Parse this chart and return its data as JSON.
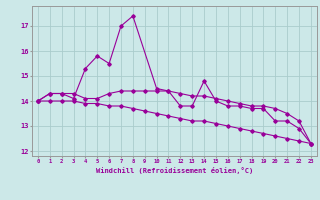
{
  "xlabel": "Windchill (Refroidissement éolien,°C)",
  "background_color": "#cce8e8",
  "grid_color": "#aacccc",
  "line_color": "#990099",
  "x_hours": [
    0,
    1,
    2,
    3,
    4,
    5,
    6,
    7,
    8,
    9,
    10,
    11,
    12,
    13,
    14,
    15,
    16,
    17,
    18,
    19,
    20,
    21,
    22,
    23
  ],
  "series1": [
    14.0,
    14.3,
    14.3,
    14.1,
    15.3,
    15.8,
    15.5,
    17.0,
    17.4,
    null,
    14.5,
    14.4,
    13.8,
    13.8,
    14.8,
    14.0,
    13.8,
    13.8,
    13.7,
    13.7,
    13.2,
    13.2,
    12.9,
    12.3
  ],
  "series2": [
    14.0,
    14.3,
    14.3,
    14.3,
    14.1,
    14.1,
    14.3,
    14.4,
    14.4,
    14.4,
    14.4,
    14.4,
    14.3,
    14.2,
    14.2,
    14.1,
    14.0,
    13.9,
    13.8,
    13.8,
    13.7,
    13.5,
    13.2,
    12.3
  ],
  "series3": [
    14.0,
    14.0,
    14.0,
    14.0,
    13.9,
    13.9,
    13.8,
    13.8,
    13.7,
    13.6,
    13.5,
    13.4,
    13.3,
    13.2,
    13.2,
    13.1,
    13.0,
    12.9,
    12.8,
    12.7,
    12.6,
    12.5,
    12.4,
    12.3
  ],
  "ylim": [
    11.8,
    17.8
  ],
  "yticks": [
    12,
    13,
    14,
    15,
    16,
    17
  ],
  "xlim": [
    -0.5,
    23.5
  ]
}
